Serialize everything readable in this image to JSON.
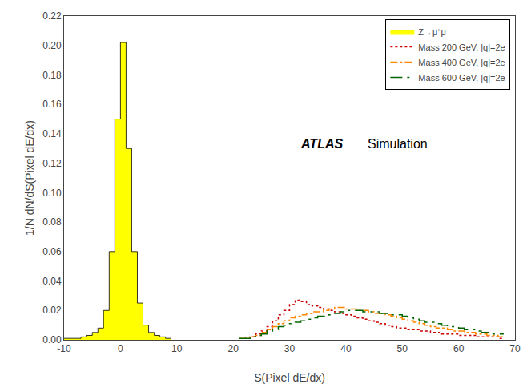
{
  "chart_data": {
    "type": "step",
    "xlabel": "S(Pixel dE/dx)",
    "ylabel": "1/N dN/dS(Pixel dE/dx)",
    "xlim": [
      -10,
      70
    ],
    "ylim": [
      0,
      0.22
    ],
    "xticks": [
      -10,
      0,
      10,
      20,
      30,
      40,
      50,
      60,
      70
    ],
    "yticks": [
      {
        "value": 0,
        "label": "0.00"
      },
      0.02,
      0.04,
      0.06,
      0.08,
      {
        "value": 0.1,
        "label": "0.10"
      },
      0.12,
      0.14,
      0.16,
      0.18,
      {
        "value": 0.2,
        "label": "0.20"
      },
      0.22
    ],
    "grid": false,
    "legend": "upper right",
    "annotations": [
      {
        "text": "ATLAS"
      },
      {
        "text": "Simulation"
      }
    ],
    "series": [
      {
        "name": "Z→μ⁺μ⁻",
        "type": "area",
        "color": "#ffff00",
        "line_style": "solid",
        "bins": [
          -10,
          -9,
          -8,
          -7,
          -6,
          -5,
          -4,
          -3,
          -2,
          -1,
          0,
          1,
          2,
          3,
          4,
          5,
          6,
          7,
          8,
          9
        ],
        "values": [
          0.001,
          0.001,
          0.001,
          0.002,
          0.003,
          0.005,
          0.008,
          0.02,
          0.06,
          0.15,
          0.202,
          0.13,
          0.06,
          0.025,
          0.01,
          0.005,
          0.003,
          0.002,
          0.001
        ]
      },
      {
        "name": "Mass 200 GeV, |q|=2e",
        "type": "step",
        "color": "#cc0000",
        "line_style": "dotted",
        "bins": [
          22,
          23,
          24,
          25,
          26,
          27,
          28,
          29,
          30,
          31,
          32,
          33,
          34,
          35,
          36,
          37,
          38,
          39,
          40,
          41,
          42,
          43,
          44,
          45,
          46,
          47,
          48,
          49,
          50,
          51,
          52,
          53,
          54,
          55,
          56,
          57,
          58,
          59,
          60,
          61,
          62,
          63,
          64,
          65,
          66,
          67,
          68
        ],
        "values": [
          0.001,
          0.002,
          0.004,
          0.006,
          0.009,
          0.013,
          0.017,
          0.02,
          0.024,
          0.027,
          0.026,
          0.024,
          0.023,
          0.022,
          0.021,
          0.02,
          0.019,
          0.018,
          0.017,
          0.016,
          0.015,
          0.014,
          0.013,
          0.012,
          0.011,
          0.01,
          0.009,
          0.008,
          0.008,
          0.007,
          0.007,
          0.006,
          0.006,
          0.005,
          0.005,
          0.004,
          0.004,
          0.004,
          0.003,
          0.003,
          0.003,
          0.002,
          0.002,
          0.002,
          0.002,
          0.001
        ]
      },
      {
        "name": "Mass 400 GeV, |q|=2e",
        "type": "step",
        "color": "#ff8800",
        "line_style": "dashdot",
        "bins": [
          21,
          22,
          23,
          24,
          25,
          26,
          27,
          28,
          29,
          30,
          31,
          32,
          33,
          34,
          35,
          36,
          37,
          38,
          39,
          40,
          41,
          42,
          43,
          44,
          45,
          46,
          47,
          48,
          49,
          50,
          51,
          52,
          53,
          54,
          55,
          56,
          57,
          58,
          59,
          60,
          61,
          62,
          63,
          64,
          65,
          66,
          67,
          68
        ],
        "values": [
          0.001,
          0.001,
          0.002,
          0.003,
          0.005,
          0.007,
          0.009,
          0.011,
          0.013,
          0.015,
          0.016,
          0.017,
          0.018,
          0.019,
          0.019,
          0.02,
          0.021,
          0.022,
          0.022,
          0.021,
          0.021,
          0.02,
          0.02,
          0.019,
          0.018,
          0.018,
          0.017,
          0.016,
          0.015,
          0.014,
          0.013,
          0.012,
          0.011,
          0.01,
          0.009,
          0.008,
          0.008,
          0.007,
          0.006,
          0.006,
          0.005,
          0.005,
          0.004,
          0.004,
          0.003,
          0.003,
          0.002
        ]
      },
      {
        "name": "Mass 600 GeV, |q|=2e",
        "type": "step",
        "color": "#006600",
        "line_style": "longdashdot",
        "bins": [
          21,
          22,
          23,
          24,
          25,
          26,
          27,
          28,
          29,
          30,
          31,
          32,
          33,
          34,
          35,
          36,
          37,
          38,
          39,
          40,
          41,
          42,
          43,
          44,
          45,
          46,
          47,
          48,
          49,
          50,
          51,
          52,
          53,
          54,
          55,
          56,
          57,
          58,
          59,
          60,
          61,
          62,
          63,
          64,
          65,
          66,
          67,
          68
        ],
        "values": [
          0.001,
          0.001,
          0.002,
          0.003,
          0.004,
          0.006,
          0.007,
          0.009,
          0.01,
          0.011,
          0.012,
          0.013,
          0.014,
          0.015,
          0.016,
          0.016,
          0.017,
          0.018,
          0.019,
          0.02,
          0.02,
          0.02,
          0.019,
          0.019,
          0.019,
          0.018,
          0.018,
          0.017,
          0.017,
          0.016,
          0.015,
          0.014,
          0.013,
          0.012,
          0.012,
          0.011,
          0.01,
          0.009,
          0.009,
          0.008,
          0.007,
          0.007,
          0.006,
          0.005,
          0.005,
          0.004,
          0.004
        ]
      }
    ]
  }
}
